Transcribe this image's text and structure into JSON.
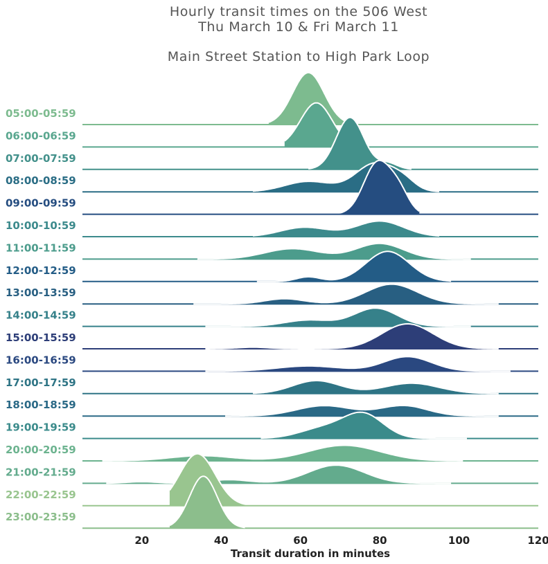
{
  "chart_data": {
    "type": "ridgeline",
    "title_lines": [
      "Hourly transit times on the 506 West",
      "Thu March 10 & Fri March 11"
    ],
    "subtitle": "Main Street Station to High Park Loop",
    "xlabel": "Transit duration in minutes",
    "xlim": [
      5,
      120
    ],
    "xticks": [
      20,
      40,
      60,
      80,
      100,
      120
    ],
    "ylabel": "",
    "grid": false,
    "legend": "none",
    "series": [
      {
        "name": "05:00-05:59",
        "color": "#7dbb8f",
        "range": [
          52,
          72
        ],
        "peaks": [
          [
            62,
            1.0,
            4
          ]
        ]
      },
      {
        "name": "06:00-06:59",
        "color": "#5aa78f",
        "range": [
          56,
          76
        ],
        "peaks": [
          [
            64,
            0.85,
            4
          ]
        ]
      },
      {
        "name": "07:00-07:59",
        "color": "#43918b",
        "range": [
          62,
          88
        ],
        "peaks": [
          [
            72.5,
            1.0,
            3.5
          ],
          [
            82,
            0.12,
            2.5
          ]
        ]
      },
      {
        "name": "08:00-08:59",
        "color": "#2a6d85",
        "range": [
          48,
          95
        ],
        "peaks": [
          [
            62,
            0.2,
            6
          ],
          [
            79,
            0.55,
            5
          ],
          [
            86,
            0.15,
            3
          ]
        ]
      },
      {
        "name": "09:00-09:59",
        "color": "#254d80",
        "range": [
          70,
          90
        ],
        "peaks": [
          [
            79.5,
            1.0,
            3.5
          ],
          [
            85,
            0.35,
            2.5
          ]
        ]
      },
      {
        "name": "10:00-10:59",
        "color": "#3c8a8c",
        "range": [
          48,
          95
        ],
        "peaks": [
          [
            61,
            0.18,
            6
          ],
          [
            80,
            0.3,
            6
          ]
        ]
      },
      {
        "name": "11:00-11:59",
        "color": "#4c9c8c",
        "range": [
          34,
          103
        ],
        "peaks": [
          [
            58,
            0.2,
            7
          ],
          [
            80,
            0.3,
            6
          ]
        ]
      },
      {
        "name": "12:00-12:59",
        "color": "#235c86",
        "range": [
          49,
          98
        ],
        "peaks": [
          [
            62,
            0.09,
            3
          ],
          [
            82,
            0.58,
            5.5
          ]
        ]
      },
      {
        "name": "13:00-13:59",
        "color": "#285f82",
        "range": [
          33,
          110
        ],
        "peaks": [
          [
            56,
            0.1,
            5
          ],
          [
            83,
            0.38,
            6.5
          ]
        ]
      },
      {
        "name": "14:00-14:59",
        "color": "#36818a",
        "range": [
          36,
          103
        ],
        "peaks": [
          [
            62,
            0.12,
            6
          ],
          [
            79,
            0.35,
            5.5
          ]
        ]
      },
      {
        "name": "15:00-15:59",
        "color": "#2d3e78",
        "range": [
          36,
          110
        ],
        "peaks": [
          [
            48,
            0.03,
            4
          ],
          [
            87,
            0.48,
            6.5
          ]
        ]
      },
      {
        "name": "16:00-16:59",
        "color": "#2a4880",
        "range": [
          36,
          113
        ],
        "peaks": [
          [
            62,
            0.1,
            8
          ],
          [
            87,
            0.28,
            6
          ]
        ]
      },
      {
        "name": "17:00-17:59",
        "color": "#2e7485",
        "range": [
          48,
          110
        ],
        "peaks": [
          [
            64,
            0.25,
            6
          ],
          [
            88,
            0.2,
            7
          ]
        ]
      },
      {
        "name": "18:00-18:59",
        "color": "#2a6986",
        "range": [
          41,
          110
        ],
        "peaks": [
          [
            66,
            0.2,
            7
          ],
          [
            86,
            0.2,
            6
          ]
        ]
      },
      {
        "name": "19:00-19:59",
        "color": "#3b8b8b",
        "range": [
          50,
          102
        ],
        "peaks": [
          [
            66,
            0.2,
            6
          ],
          [
            76,
            0.45,
            5
          ]
        ]
      },
      {
        "name": "20:00-20:59",
        "color": "#6cb38f",
        "range": [
          10,
          101
        ],
        "peaks": [
          [
            35,
            0.1,
            8
          ],
          [
            71,
            0.3,
            9
          ]
        ]
      },
      {
        "name": "21:00-21:59",
        "color": "#63ab8d",
        "range": [
          11,
          98
        ],
        "peaks": [
          [
            20,
            0.03,
            4
          ],
          [
            42,
            0.07,
            5
          ],
          [
            69,
            0.35,
            7
          ]
        ]
      },
      {
        "name": "22:00-22:59",
        "color": "#99c58f",
        "range": [
          27,
          46
        ],
        "peaks": [
          [
            34,
            1.0,
            4.5
          ]
        ]
      },
      {
        "name": "23:00-23:59",
        "color": "#8cbe8c",
        "range": [
          27,
          46
        ],
        "peaks": [
          [
            35.5,
            1.0,
            3.5
          ]
        ]
      }
    ]
  }
}
